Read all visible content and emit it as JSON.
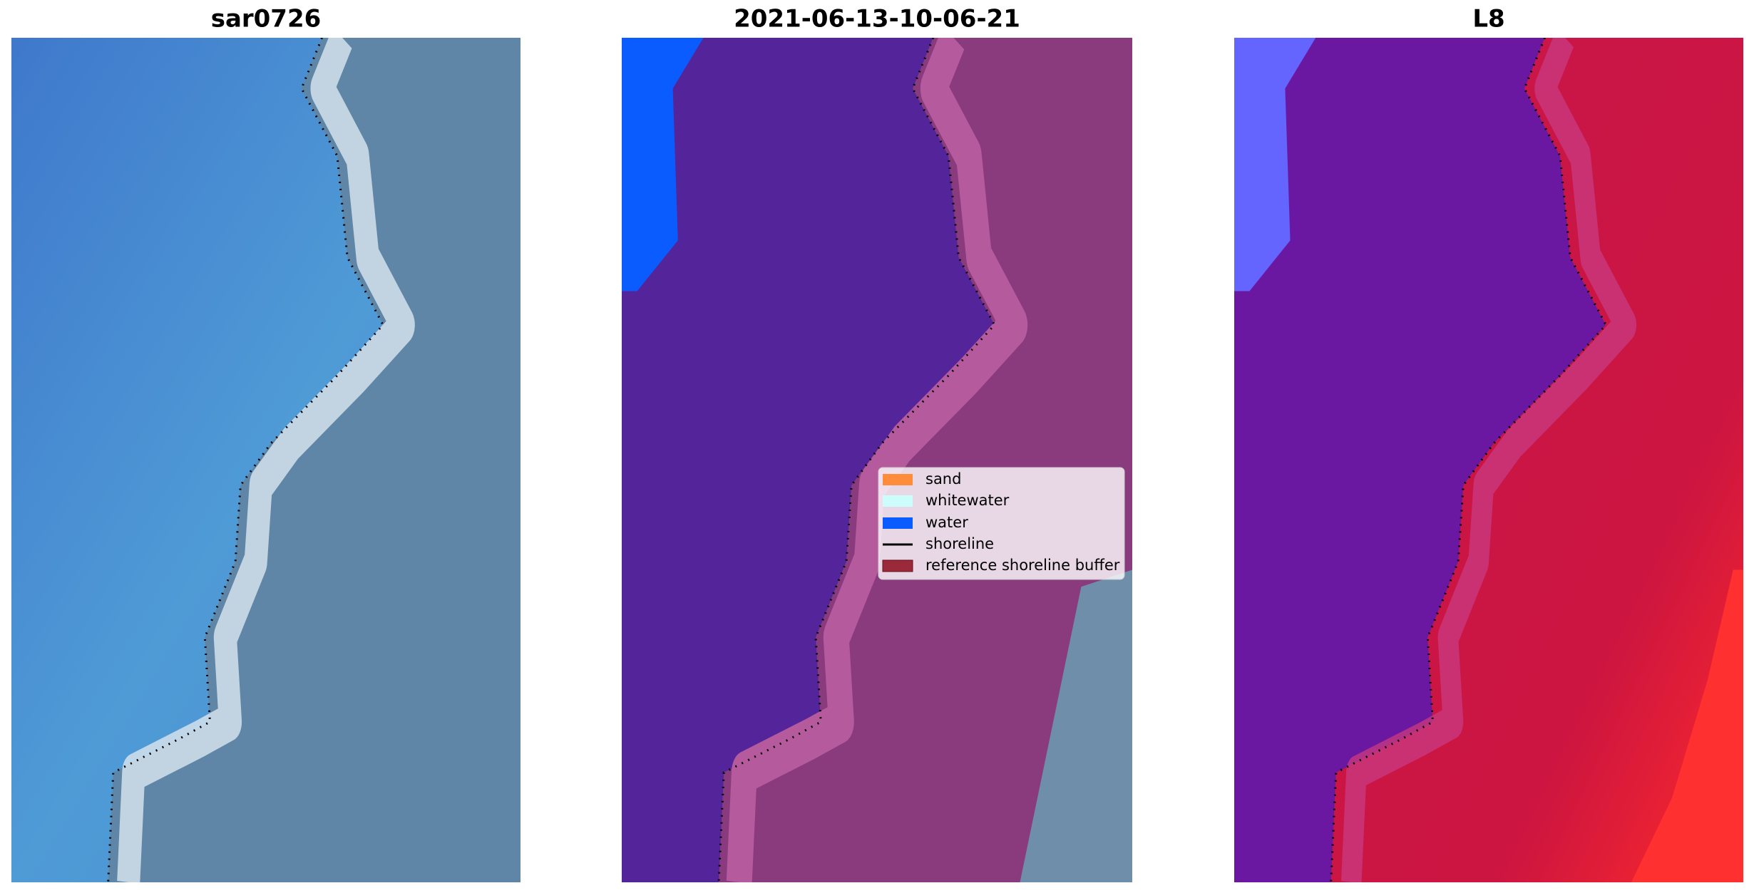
{
  "panels": [
    {
      "title": "sar0726"
    },
    {
      "title": "2021-06-13-10-06-21"
    },
    {
      "title": "L8"
    }
  ],
  "legend": {
    "items": [
      "sand",
      "whitewater",
      "water",
      "shoreline",
      "reference shoreline buffer"
    ]
  }
}
